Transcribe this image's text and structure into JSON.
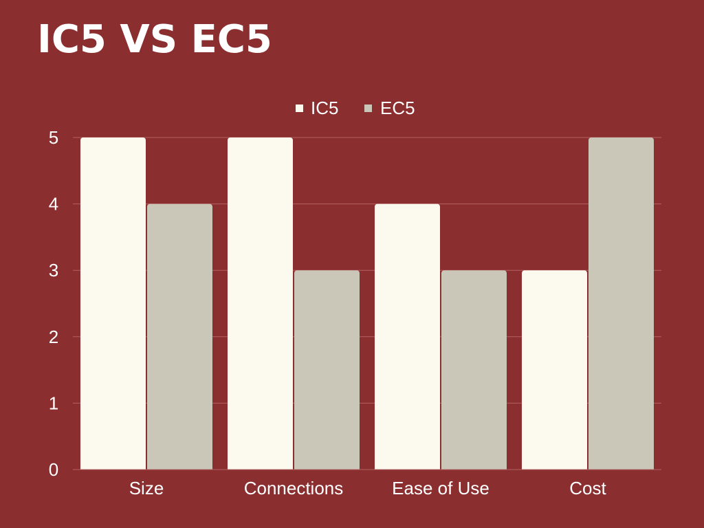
{
  "title": "IC5 VS EC5",
  "colors": {
    "background": "#8b2e30",
    "ic5": "#fcf9ef",
    "ec5": "#cac7b8",
    "grid": "#b36264",
    "text": "#ffffff"
  },
  "chart_data": {
    "type": "bar",
    "title": "IC5 VS EC5",
    "xlabel": "",
    "ylabel": "",
    "categories": [
      "Size",
      "Connections",
      "Ease of Use",
      "Cost"
    ],
    "series": [
      {
        "name": "IC5",
        "values": [
          5,
          5,
          4,
          3
        ],
        "color": "#fcf9ef"
      },
      {
        "name": "EC5",
        "values": [
          4,
          3,
          3,
          5
        ],
        "color": "#cac7b8"
      }
    ],
    "ylim": [
      0,
      5
    ],
    "yticks": [
      0,
      1,
      2,
      3,
      4,
      5
    ],
    "grid": true,
    "legend": "top-center"
  }
}
